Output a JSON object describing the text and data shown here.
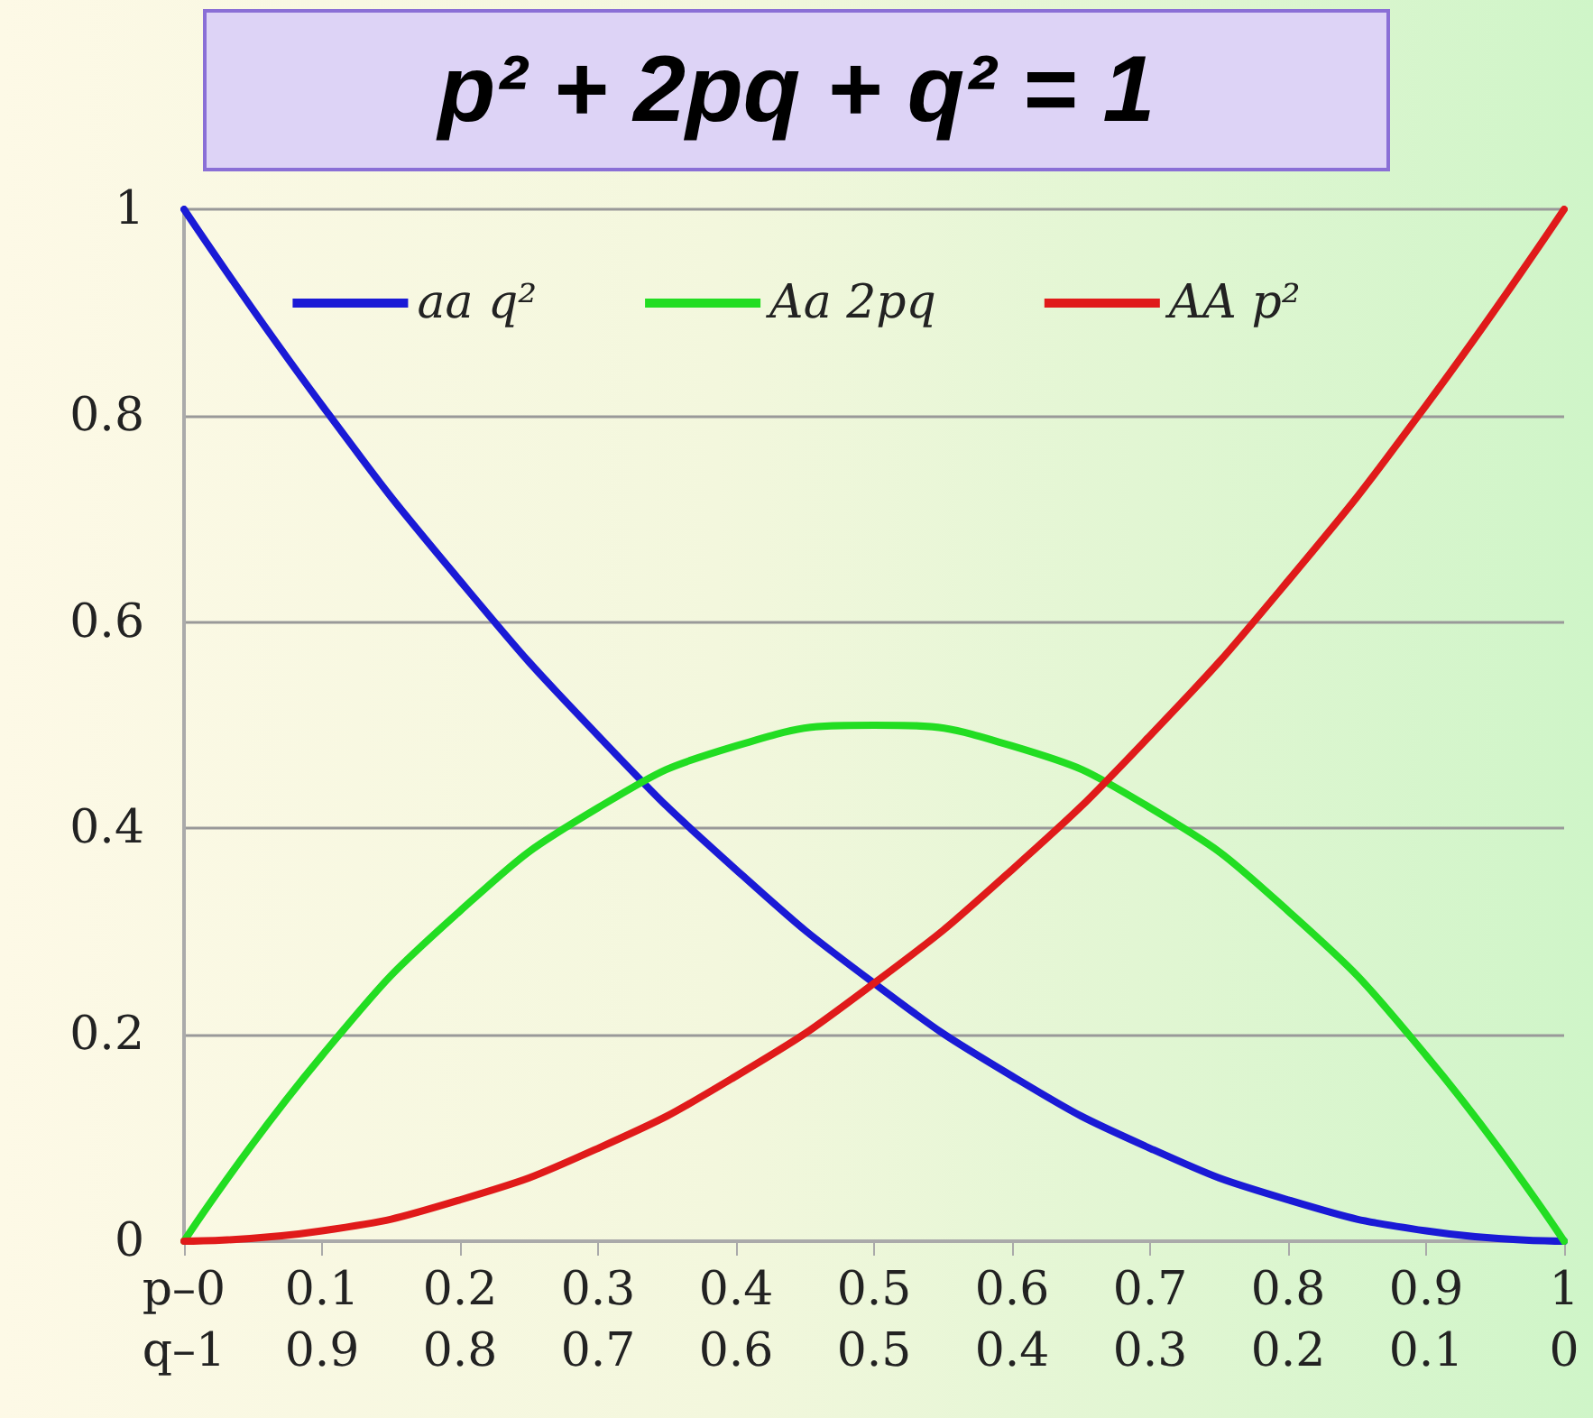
{
  "chart_data": {
    "type": "line",
    "title": "p² + 2pq + q² = 1",
    "x": [
      0,
      0.1,
      0.2,
      0.3,
      0.4,
      0.5,
      0.6,
      0.7,
      0.8,
      0.9,
      1
    ],
    "series": [
      {
        "name": "aa q²",
        "color": "#1a1ad6",
        "values": [
          1,
          0.81,
          0.64,
          0.49,
          0.36,
          0.25,
          0.16,
          0.09,
          0.04,
          0.01,
          0
        ]
      },
      {
        "name": "Aa 2pq",
        "color": "#22dd22",
        "values": [
          0,
          0.18,
          0.32,
          0.42,
          0.48,
          0.5,
          0.48,
          0.42,
          0.32,
          0.18,
          0
        ]
      },
      {
        "name": "AA p²",
        "color": "#e01a1a",
        "values": [
          0,
          0.01,
          0.04,
          0.09,
          0.16,
          0.25,
          0.36,
          0.49,
          0.64,
          0.81,
          1
        ]
      }
    ],
    "xlim": [
      0,
      1
    ],
    "xticks": [
      {
        "value": 0,
        "label": "p–0"
      },
      0.1,
      0.2,
      0.3,
      0.4,
      0.5,
      0.6,
      0.7,
      0.8,
      0.9,
      1
    ],
    "x2lim": [
      1,
      0
    ],
    "x2ticks": [
      {
        "value": 1,
        "label": "q–1"
      },
      0.9,
      0.8,
      0.7,
      0.6,
      0.5,
      0.4,
      0.3,
      0.2,
      0.1,
      0
    ],
    "ylim": [
      0,
      1
    ],
    "yticks": [
      0,
      0.2,
      0.4,
      0.6,
      0.8,
      1
    ],
    "grid": "y",
    "legend": "top",
    "marker": "none",
    "line_style": "solid"
  }
}
